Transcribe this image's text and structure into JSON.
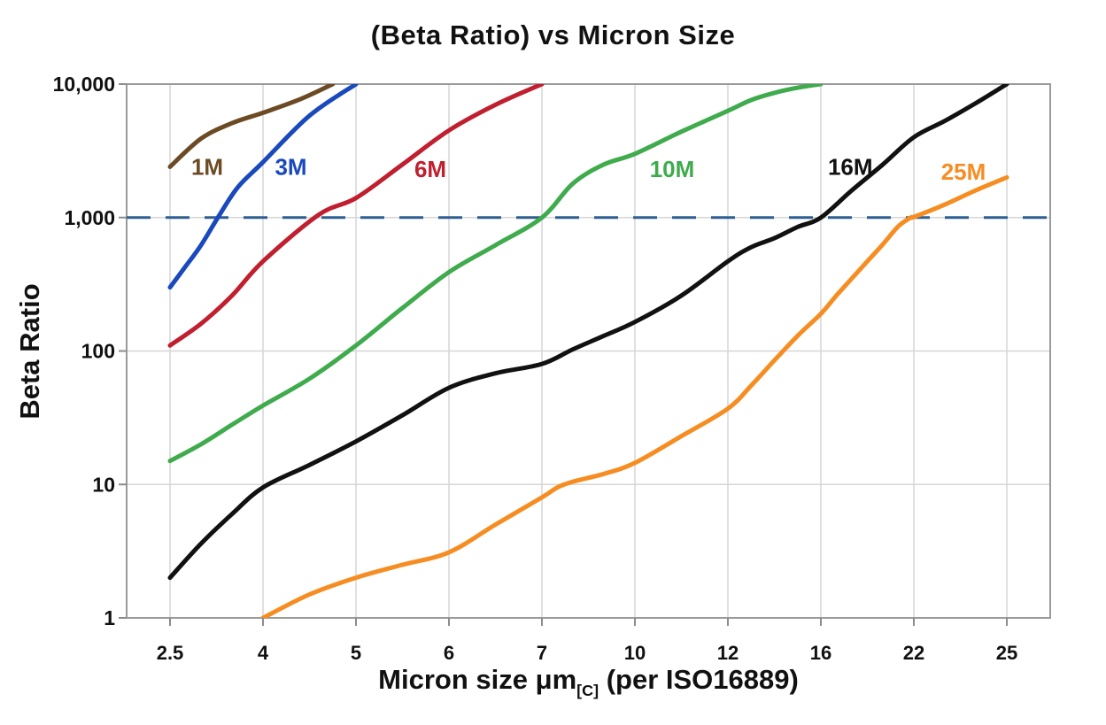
{
  "chart_data": {
    "type": "line",
    "title": "(Beta Ratio) vs Micron Size",
    "ylabel": "Beta Ratio",
    "xlabel_main": "Micron size μm",
    "xlabel_sub": "[C]",
    "xlabel_rest": " (per ISO16889)",
    "x_tick_values": [
      2.5,
      4,
      5,
      6,
      7,
      10,
      12,
      16,
      22,
      25
    ],
    "x_tick_labels": [
      "2.5",
      "4",
      "5",
      "6",
      "7",
      "10",
      "12",
      "16",
      "22",
      "25"
    ],
    "y_scale": "log",
    "ylim": [
      1,
      10000
    ],
    "y_tick_values": [
      1,
      10,
      100,
      1000,
      10000
    ],
    "y_tick_labels": [
      "1",
      "10",
      "100",
      "1,000",
      "10,000"
    ],
    "grid": true,
    "legend_position": "inline-labels",
    "reference_line": {
      "beta": 1000,
      "style": "dashed",
      "color": "#2d5f91"
    },
    "colors": {
      "grid": "#d6d6d6",
      "frame": "#9a9a9a",
      "tick": "#8c8c8c",
      "text": "#111111"
    },
    "series": [
      {
        "name": "1M",
        "color": "#6b4a24",
        "label_at": [
          3.1,
          2400
        ],
        "points": [
          [
            2.5,
            2400
          ],
          [
            3,
            3900
          ],
          [
            3.5,
            5100
          ],
          [
            4,
            6100
          ],
          [
            4.4,
            7700
          ],
          [
            4.75,
            10000
          ]
        ]
      },
      {
        "name": "3M",
        "color": "#1a49bd",
        "label_at": [
          4.3,
          2400
        ],
        "points": [
          [
            2.5,
            300
          ],
          [
            2.75,
            430
          ],
          [
            3,
            620
          ],
          [
            3.3,
            1050
          ],
          [
            3.6,
            1700
          ],
          [
            4,
            2600
          ],
          [
            4.5,
            5800
          ],
          [
            5,
            10000
          ]
        ]
      },
      {
        "name": "6M",
        "color": "#c01f2f",
        "label_at": [
          5.8,
          2300
        ],
        "points": [
          [
            2.5,
            110
          ],
          [
            3,
            160
          ],
          [
            3.5,
            260
          ],
          [
            4,
            470
          ],
          [
            4.6,
            1050
          ],
          [
            5,
            1400
          ],
          [
            5.5,
            2500
          ],
          [
            6,
            4500
          ],
          [
            6.5,
            7000
          ],
          [
            7,
            10000
          ]
        ]
      },
      {
        "name": "10M",
        "color": "#3fab4d",
        "label_at": [
          10.8,
          2300
        ],
        "points": [
          [
            2.5,
            15
          ],
          [
            3,
            20
          ],
          [
            3.5,
            28
          ],
          [
            4,
            39
          ],
          [
            4.5,
            62
          ],
          [
            5,
            110
          ],
          [
            5.5,
            210
          ],
          [
            6,
            390
          ],
          [
            6.5,
            620
          ],
          [
            7,
            1000
          ],
          [
            8,
            1800
          ],
          [
            9,
            2500
          ],
          [
            10,
            3000
          ],
          [
            11,
            4400
          ],
          [
            12,
            6300
          ],
          [
            13,
            7600
          ],
          [
            14,
            8600
          ],
          [
            15,
            9400
          ],
          [
            16,
            10000
          ]
        ]
      },
      {
        "name": "16M",
        "color": "#111111",
        "label_at": [
          17.9,
          2400
        ],
        "points": [
          [
            2.5,
            2
          ],
          [
            3,
            3.6
          ],
          [
            3.5,
            6
          ],
          [
            4,
            9.5
          ],
          [
            4.5,
            14
          ],
          [
            5,
            21
          ],
          [
            5.5,
            33
          ],
          [
            6,
            53
          ],
          [
            6.5,
            68
          ],
          [
            7,
            80
          ],
          [
            8,
            103
          ],
          [
            9,
            130
          ],
          [
            10,
            165
          ],
          [
            11,
            260
          ],
          [
            12,
            470
          ],
          [
            13,
            600
          ],
          [
            14,
            700
          ],
          [
            15,
            850
          ],
          [
            16,
            1000
          ],
          [
            18,
            1600
          ],
          [
            20,
            2500
          ],
          [
            22,
            4000
          ],
          [
            23,
            5300
          ],
          [
            24,
            7200
          ],
          [
            25,
            10000
          ]
        ]
      },
      {
        "name": "25M",
        "color": "#f68d22",
        "label_at": [
          23.6,
          2200
        ],
        "points": [
          [
            4,
            1
          ],
          [
            4.5,
            1.5
          ],
          [
            5,
            2
          ],
          [
            5.5,
            2.5
          ],
          [
            6,
            3.1
          ],
          [
            6.5,
            5
          ],
          [
            7,
            8
          ],
          [
            7.5,
            9.5
          ],
          [
            8,
            10.5
          ],
          [
            9,
            12
          ],
          [
            10,
            14.5
          ],
          [
            11,
            23
          ],
          [
            12,
            37
          ],
          [
            13,
            55
          ],
          [
            14,
            85
          ],
          [
            15,
            130
          ],
          [
            16,
            190
          ],
          [
            17,
            260
          ],
          [
            18,
            350
          ],
          [
            19,
            470
          ],
          [
            20,
            630
          ],
          [
            21,
            860
          ],
          [
            21.8,
            1000
          ],
          [
            22,
            1010
          ],
          [
            23,
            1250
          ],
          [
            24,
            1600
          ],
          [
            25,
            2000
          ]
        ]
      }
    ]
  }
}
